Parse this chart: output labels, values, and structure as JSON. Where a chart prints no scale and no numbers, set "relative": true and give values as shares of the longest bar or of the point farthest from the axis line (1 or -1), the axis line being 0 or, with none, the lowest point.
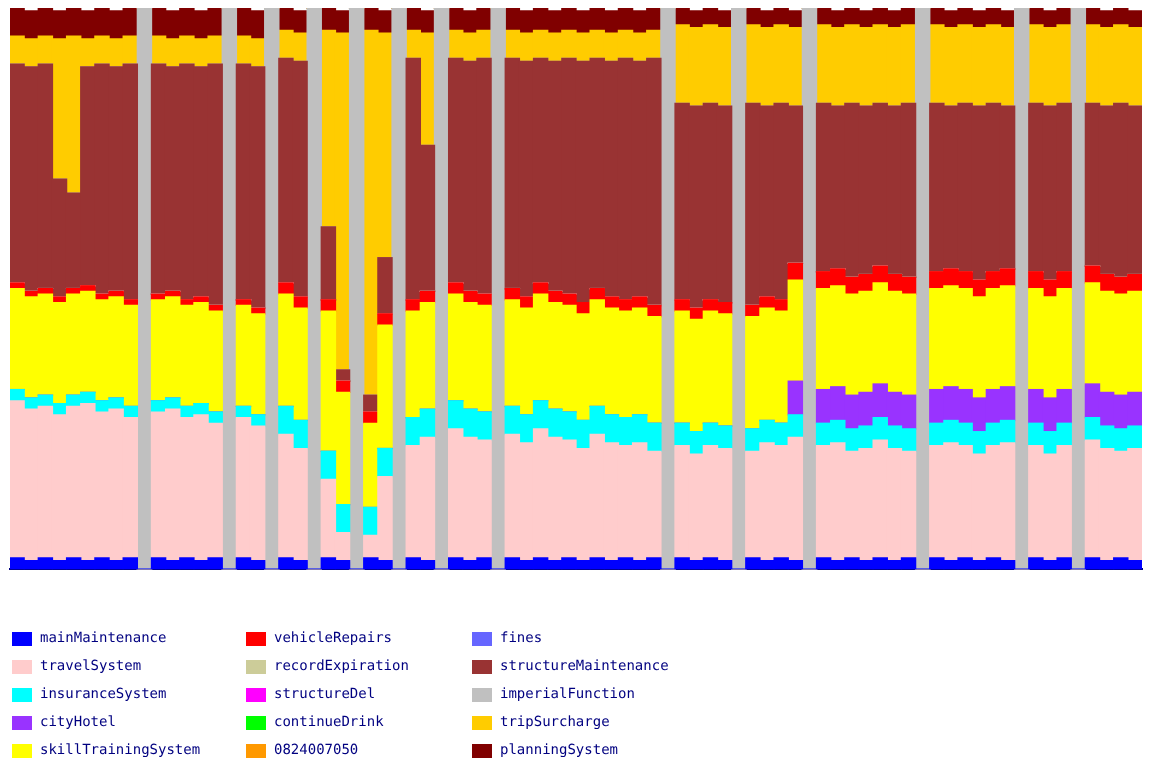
{
  "chart_data": {
    "type": "bar",
    "stacked": true,
    "relative": true,
    "legend": "bottom left",
    "grid": false,
    "categories": [
      null,
      null,
      null,
      null,
      null,
      null,
      null,
      null,
      null,
      null,
      null,
      null,
      null,
      null,
      null,
      null,
      null,
      null,
      null,
      null,
      null,
      null,
      null,
      null,
      null,
      null,
      null,
      null,
      null,
      null,
      null,
      null,
      null,
      null,
      null,
      null,
      null,
      null,
      null,
      null,
      null,
      null,
      null,
      null,
      null,
      null,
      null,
      null,
      null,
      null,
      null,
      null,
      null,
      null,
      null,
      null,
      null,
      null,
      null,
      null,
      null,
      null,
      null,
      null,
      null,
      null,
      null,
      null,
      null,
      null,
      null,
      null,
      null,
      null,
      null,
      null,
      null,
      null,
      null,
      null
    ],
    "series": [
      {
        "name": "mainMaintenance",
        "color": "#0000ff",
        "values": [
          0.02,
          0.015,
          0.02,
          0.015,
          0.02,
          0.015,
          0.02,
          0.015,
          0.02,
          0,
          0.02,
          0.015,
          0.02,
          0.015,
          0.02,
          0,
          0.02,
          0.015,
          0,
          0.02,
          0.015,
          0,
          0.02,
          0.015,
          0,
          0.02,
          0.015,
          0,
          0.02,
          0.015,
          0,
          0.02,
          0.015,
          0.02,
          0,
          0.02,
          0.015,
          0.02,
          0.015,
          0.02,
          0.015,
          0.02,
          0.015,
          0.02,
          0.015,
          0.02,
          0,
          0.02,
          0.015,
          0.02,
          0.015,
          0,
          0.02,
          0.015,
          0.02,
          0.015,
          0,
          0.02,
          0.015,
          0.02,
          0.015,
          0.02,
          0.015,
          0.02,
          0,
          0.02,
          0.015,
          0.02,
          0.015,
          0.02,
          0.015,
          0,
          0.02,
          0.015,
          0.02,
          0,
          0.02,
          0.015,
          0.02,
          0.015
        ]
      },
      {
        "name": "travelSystem",
        "color": "#ffcccc",
        "values": [
          0.28,
          0.27,
          0.27,
          0.26,
          0.27,
          0.28,
          0.26,
          0.27,
          0.25,
          0,
          0.26,
          0.27,
          0.25,
          0.26,
          0.24,
          0,
          0.25,
          0.24,
          0,
          0.22,
          0.2,
          0,
          0.14,
          0.05,
          0,
          0.04,
          0.15,
          0,
          0.2,
          0.22,
          0,
          0.23,
          0.22,
          0.21,
          0,
          0.22,
          0.21,
          0.23,
          0.22,
          0.21,
          0.2,
          0.22,
          0.21,
          0.2,
          0.21,
          0.19,
          0,
          0.2,
          0.19,
          0.2,
          0.2,
          0,
          0.19,
          0.21,
          0.2,
          0.22,
          0,
          0.2,
          0.21,
          0.19,
          0.2,
          0.21,
          0.2,
          0.19,
          0,
          0.2,
          0.21,
          0.2,
          0.19,
          0.2,
          0.21,
          0,
          0.2,
          0.19,
          0.2,
          0,
          0.21,
          0.2,
          0.19,
          0.2
        ]
      },
      {
        "name": "insuranceSystem",
        "color": "#00ffff",
        "values": [
          0.02,
          0.02,
          0.02,
          0.02,
          0.02,
          0.02,
          0.02,
          0.02,
          0.02,
          0,
          0.02,
          0.02,
          0.02,
          0.02,
          0.02,
          0,
          0.02,
          0.02,
          0,
          0.05,
          0.05,
          0,
          0.05,
          0.05,
          0,
          0.05,
          0.05,
          0,
          0.05,
          0.05,
          0,
          0.05,
          0.05,
          0.05,
          0,
          0.05,
          0.05,
          0.05,
          0.05,
          0.05,
          0.05,
          0.05,
          0.05,
          0.05,
          0.05,
          0.05,
          0,
          0.04,
          0.04,
          0.04,
          0.04,
          0,
          0.04,
          0.04,
          0.04,
          0.04,
          0,
          0.04,
          0.04,
          0.04,
          0.04,
          0.04,
          0.04,
          0.04,
          0,
          0.04,
          0.04,
          0.04,
          0.04,
          0.04,
          0.04,
          0,
          0.04,
          0.04,
          0.04,
          0,
          0.04,
          0.04,
          0.04,
          0.04
        ]
      },
      {
        "name": "cityHotel",
        "color": "#9933ff",
        "values": [
          0,
          0,
          0,
          0,
          0,
          0,
          0,
          0,
          0,
          0,
          0,
          0,
          0,
          0,
          0,
          0,
          0,
          0,
          0,
          0,
          0,
          0,
          0,
          0,
          0,
          0,
          0,
          0,
          0,
          0,
          0,
          0,
          0,
          0,
          0,
          0,
          0,
          0,
          0,
          0,
          0,
          0,
          0,
          0,
          0,
          0,
          0,
          0,
          0,
          0,
          0,
          0,
          0,
          0,
          0,
          0.06,
          0,
          0.06,
          0.06,
          0.06,
          0.06,
          0.06,
          0.06,
          0.06,
          0,
          0.06,
          0.06,
          0.06,
          0.06,
          0.06,
          0.06,
          0,
          0.06,
          0.06,
          0.06,
          0,
          0.06,
          0.06,
          0.06,
          0.06
        ]
      },
      {
        "name": "skillTrainingSystem",
        "color": "#ffff00",
        "values": [
          0.18,
          0.18,
          0.18,
          0.18,
          0.18,
          0.18,
          0.18,
          0.18,
          0.18,
          0,
          0.18,
          0.18,
          0.18,
          0.18,
          0.18,
          0,
          0.18,
          0.18,
          0,
          0.2,
          0.2,
          0,
          0.25,
          0.2,
          0,
          0.15,
          0.22,
          0,
          0.19,
          0.19,
          0,
          0.19,
          0.19,
          0.19,
          0,
          0.19,
          0.19,
          0.19,
          0.19,
          0.19,
          0.19,
          0.19,
          0.19,
          0.19,
          0.19,
          0.19,
          0,
          0.2,
          0.2,
          0.2,
          0.2,
          0,
          0.2,
          0.2,
          0.2,
          0.18,
          0,
          0.18,
          0.18,
          0.18,
          0.18,
          0.18,
          0.18,
          0.18,
          0,
          0.18,
          0.18,
          0.18,
          0.18,
          0.18,
          0.18,
          0,
          0.18,
          0.18,
          0.18,
          0,
          0.18,
          0.18,
          0.18,
          0.18
        ]
      },
      {
        "name": "vehicleRepairs",
        "color": "#ff0000",
        "values": [
          0.01,
          0.01,
          0.01,
          0.01,
          0.01,
          0.01,
          0.01,
          0.01,
          0.01,
          0,
          0.01,
          0.01,
          0.01,
          0.01,
          0.01,
          0,
          0.01,
          0.01,
          0,
          0.02,
          0.02,
          0,
          0.02,
          0.02,
          0,
          0.02,
          0.02,
          0,
          0.02,
          0.02,
          0,
          0.02,
          0.02,
          0.02,
          0,
          0.02,
          0.02,
          0.02,
          0.02,
          0.02,
          0.02,
          0.02,
          0.02,
          0.02,
          0.02,
          0.02,
          0,
          0.02,
          0.02,
          0.02,
          0.02,
          0,
          0.02,
          0.02,
          0.02,
          0.03,
          0,
          0.03,
          0.03,
          0.03,
          0.03,
          0.03,
          0.03,
          0.03,
          0,
          0.03,
          0.03,
          0.03,
          0.03,
          0.03,
          0.03,
          0,
          0.03,
          0.03,
          0.03,
          0,
          0.03,
          0.03,
          0.03,
          0.03
        ]
      },
      {
        "name": "recordExpiration",
        "color": "#cccc99",
        "values": [
          0,
          0,
          0,
          0,
          0,
          0,
          0,
          0,
          0,
          0,
          0,
          0,
          0,
          0,
          0,
          0,
          0,
          0,
          0,
          0,
          0,
          0,
          0,
          0,
          0,
          0,
          0,
          0,
          0,
          0,
          0,
          0,
          0,
          0,
          0,
          0,
          0,
          0,
          0,
          0,
          0,
          0,
          0,
          0,
          0,
          0,
          0,
          0,
          0,
          0,
          0,
          0,
          0,
          0,
          0,
          0,
          0,
          0,
          0,
          0,
          0,
          0,
          0,
          0,
          0,
          0,
          0,
          0,
          0,
          0,
          0,
          0,
          0,
          0,
          0,
          0,
          0,
          0,
          0,
          0
        ]
      },
      {
        "name": "structureDel",
        "color": "#ff00ff",
        "values": [
          0,
          0,
          0,
          0,
          0,
          0,
          0,
          0,
          0,
          0,
          0,
          0,
          0,
          0,
          0,
          0,
          0,
          0,
          0,
          0,
          0,
          0,
          0,
          0,
          0,
          0,
          0,
          0,
          0,
          0,
          0,
          0,
          0,
          0,
          0,
          0,
          0,
          0,
          0,
          0,
          0,
          0,
          0,
          0,
          0,
          0,
          0,
          0,
          0,
          0,
          0,
          0,
          0,
          0,
          0,
          0,
          0,
          0,
          0,
          0,
          0,
          0,
          0,
          0,
          0,
          0,
          0,
          0,
          0,
          0,
          0,
          0,
          0,
          0,
          0,
          0,
          0,
          0,
          0,
          0
        ]
      },
      {
        "name": "continueDrink",
        "color": "#00ff00",
        "values": [
          0,
          0,
          0,
          0,
          0,
          0,
          0,
          0,
          0,
          0,
          0,
          0,
          0,
          0,
          0,
          0,
          0,
          0,
          0,
          0,
          0,
          0,
          0,
          0,
          0,
          0,
          0,
          0,
          0,
          0,
          0,
          0,
          0,
          0,
          0,
          0,
          0,
          0,
          0,
          0,
          0,
          0,
          0,
          0,
          0,
          0,
          0,
          0,
          0,
          0,
          0,
          0,
          0,
          0,
          0,
          0,
          0,
          0,
          0,
          0,
          0,
          0,
          0,
          0,
          0,
          0,
          0,
          0,
          0,
          0,
          0,
          0,
          0,
          0,
          0,
          0,
          0,
          0,
          0,
          0
        ]
      },
      {
        "name": "0824007050",
        "color": "#ff9900",
        "values": [
          0,
          0,
          0,
          0,
          0,
          0,
          0,
          0,
          0,
          0,
          0,
          0,
          0,
          0,
          0,
          0,
          0,
          0,
          0,
          0,
          0,
          0,
          0,
          0,
          0,
          0,
          0,
          0,
          0,
          0,
          0,
          0,
          0,
          0,
          0,
          0,
          0,
          0,
          0,
          0,
          0,
          0,
          0,
          0,
          0,
          0,
          0,
          0,
          0,
          0,
          0,
          0,
          0,
          0,
          0,
          0,
          0,
          0,
          0,
          0,
          0,
          0,
          0,
          0,
          0,
          0,
          0,
          0,
          0,
          0,
          0,
          0,
          0,
          0,
          0,
          0,
          0,
          0,
          0,
          0
        ]
      },
      {
        "name": "fines",
        "color": "#6666ff",
        "values": [
          0,
          0,
          0,
          0,
          0,
          0,
          0,
          0,
          0,
          0,
          0,
          0,
          0,
          0,
          0,
          0,
          0,
          0,
          0,
          0,
          0,
          0,
          0,
          0,
          0,
          0,
          0,
          0,
          0,
          0,
          0,
          0,
          0,
          0,
          0,
          0,
          0,
          0,
          0,
          0,
          0,
          0,
          0,
          0,
          0,
          0,
          0,
          0,
          0,
          0,
          0,
          0,
          0,
          0,
          0,
          0,
          0,
          0,
          0,
          0,
          0,
          0,
          0,
          0,
          0,
          0,
          0,
          0,
          0,
          0,
          0,
          0,
          0,
          0,
          0,
          0,
          0,
          0,
          0,
          0
        ]
      },
      {
        "name": "structureMaintenance",
        "color": "#993333",
        "values": [
          0.39,
          0.4,
          0.4,
          0.21,
          0.17,
          0.39,
          0.41,
          0.4,
          0.42,
          0,
          0.41,
          0.4,
          0.42,
          0.41,
          0.43,
          0,
          0.42,
          0.43,
          0,
          0.4,
          0.42,
          0,
          0.13,
          0.02,
          0,
          0.03,
          0.1,
          0,
          0.43,
          0.26,
          0,
          0.4,
          0.41,
          0.42,
          0,
          0.41,
          0.42,
          0.4,
          0.41,
          0.42,
          0.43,
          0.41,
          0.42,
          0.43,
          0.42,
          0.44,
          0,
          0.35,
          0.36,
          0.35,
          0.35,
          0,
          0.36,
          0.34,
          0.35,
          0.28,
          0,
          0.3,
          0.29,
          0.31,
          0.3,
          0.29,
          0.3,
          0.31,
          0,
          0.3,
          0.29,
          0.3,
          0.31,
          0.3,
          0.29,
          0,
          0.3,
          0.31,
          0.3,
          0,
          0.29,
          0.3,
          0.31,
          0.3
        ]
      },
      {
        "name": "imperialFunction",
        "color": "#c0c0c0",
        "values": [
          0,
          0,
          0,
          0,
          0,
          0,
          0,
          0,
          0,
          1,
          0,
          0,
          0,
          0,
          0,
          1,
          0,
          0,
          1,
          0,
          0,
          1,
          0,
          0,
          1,
          0,
          0,
          1,
          0,
          0,
          1,
          0,
          0,
          0,
          1,
          0,
          0,
          0,
          0,
          0,
          0,
          0,
          0,
          0,
          0,
          0,
          1,
          0,
          0,
          0,
          0,
          1,
          0,
          0,
          0,
          0,
          1,
          0,
          0,
          0,
          0,
          0,
          0,
          0,
          1,
          0,
          0,
          0,
          0,
          0,
          0,
          1,
          0,
          0,
          0,
          1,
          0,
          0,
          0,
          0
        ]
      },
      {
        "name": "tripSurcharge",
        "color": "#ffcc00",
        "values": [
          0.05,
          0.05,
          0.05,
          0.25,
          0.28,
          0.05,
          0.05,
          0.05,
          0.05,
          0,
          0.05,
          0.05,
          0.05,
          0.05,
          0.05,
          0,
          0.05,
          0.05,
          0,
          0.05,
          0.05,
          0,
          0.35,
          0.6,
          0,
          0.65,
          0.4,
          0,
          0.05,
          0.2,
          0,
          0.05,
          0.05,
          0.05,
          0,
          0.05,
          0.05,
          0.05,
          0.05,
          0.05,
          0.05,
          0.05,
          0.05,
          0.05,
          0.05,
          0.05,
          0,
          0.14,
          0.14,
          0.14,
          0.14,
          0,
          0.14,
          0.14,
          0.14,
          0.14,
          0,
          0.14,
          0.14,
          0.14,
          0.14,
          0.14,
          0.14,
          0.14,
          0,
          0.14,
          0.14,
          0.14,
          0.14,
          0.14,
          0.14,
          0,
          0.14,
          0.14,
          0.14,
          0,
          0.14,
          0.14,
          0.14,
          0.14
        ]
      },
      {
        "name": "planningSystem",
        "color": "#800000",
        "values": [
          0.05,
          0.05,
          0.05,
          0.05,
          0.05,
          0.05,
          0.05,
          0.05,
          0.05,
          0,
          0.05,
          0.05,
          0.05,
          0.05,
          0.05,
          0,
          0.05,
          0.05,
          0,
          0.04,
          0.04,
          0,
          0.04,
          0.04,
          0,
          0.04,
          0.04,
          0,
          0.04,
          0.04,
          0,
          0.04,
          0.04,
          0.04,
          0,
          0.04,
          0.04,
          0.04,
          0.04,
          0.04,
          0.04,
          0.04,
          0.04,
          0.04,
          0.04,
          0.04,
          0,
          0.03,
          0.03,
          0.03,
          0.03,
          0,
          0.03,
          0.03,
          0.03,
          0.03,
          0,
          0.03,
          0.03,
          0.03,
          0.03,
          0.03,
          0.03,
          0.03,
          0,
          0.03,
          0.03,
          0.03,
          0.03,
          0.03,
          0.03,
          0,
          0.03,
          0.03,
          0.03,
          0,
          0.03,
          0.03,
          0.03,
          0.03
        ]
      }
    ]
  }
}
